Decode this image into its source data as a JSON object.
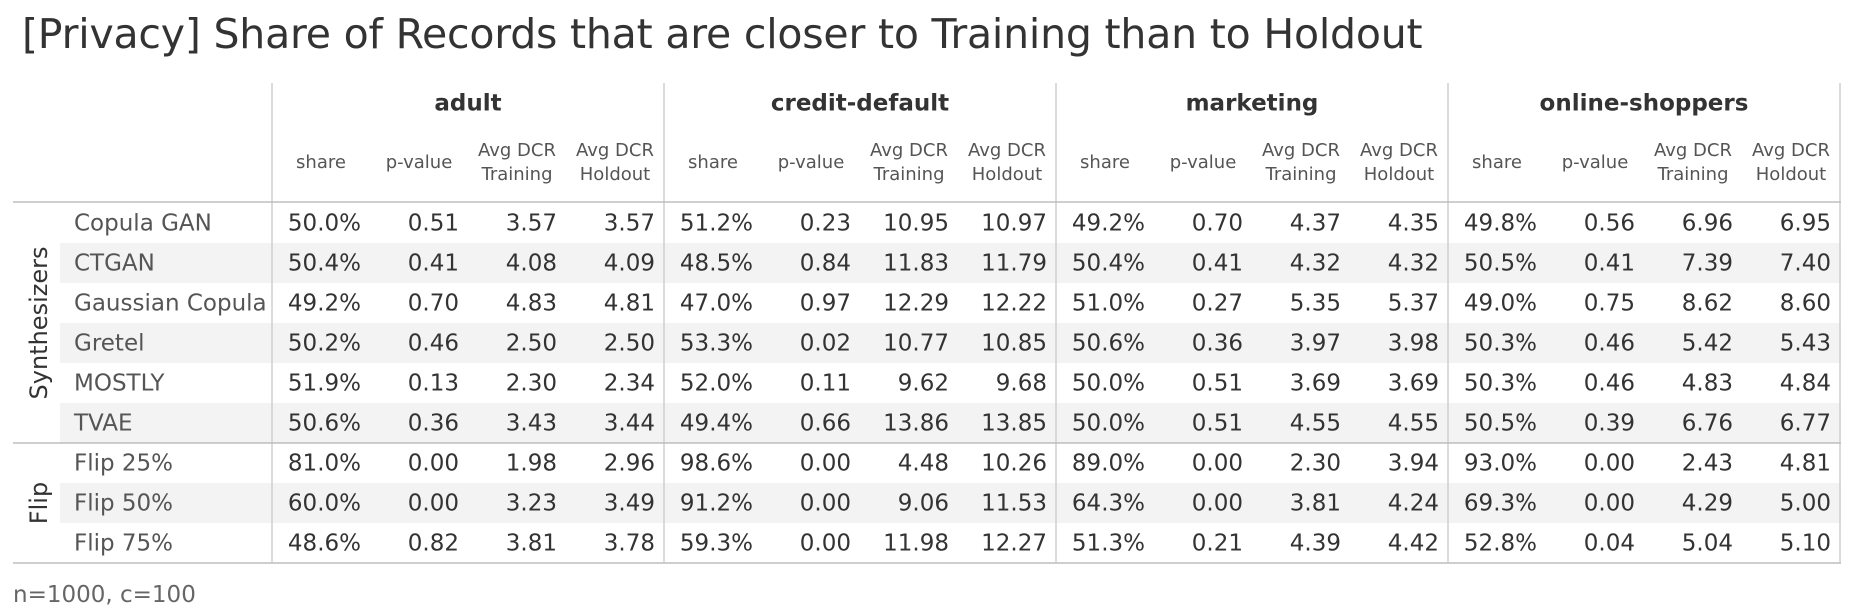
{
  "title": "[Privacy] Share of Records that are closer to Training than to Holdout",
  "footnote": "n=1000, c=100",
  "colors": {
    "row_stripe": "#f3f3f3",
    "grid_line": "#cfcfcf",
    "section_divider": "#bdbdbd",
    "header_text": "#333333",
    "subheader_text": "#555555",
    "cell_text": "#333333",
    "row_label_text": "#555555"
  },
  "chart_data": {
    "type": "table",
    "datasets": [
      "adult",
      "credit-default",
      "marketing",
      "online-shoppers"
    ],
    "metrics": [
      {
        "lines": [
          "share"
        ]
      },
      {
        "lines": [
          "p-value"
        ]
      },
      {
        "lines": [
          "Avg DCR",
          "Training"
        ]
      },
      {
        "lines": [
          "Avg DCR",
          "Holdout"
        ]
      }
    ],
    "groups": [
      {
        "name": "Synthesizers",
        "rows": [
          {
            "label": "Copula GAN",
            "values": [
              "50.0%",
              "0.51",
              "3.57",
              "3.57",
              "51.2%",
              "0.23",
              "10.95",
              "10.97",
              "49.2%",
              "0.70",
              "4.37",
              "4.35",
              "49.8%",
              "0.56",
              "6.96",
              "6.95"
            ]
          },
          {
            "label": "CTGAN",
            "values": [
              "50.4%",
              "0.41",
              "4.08",
              "4.09",
              "48.5%",
              "0.84",
              "11.83",
              "11.79",
              "50.4%",
              "0.41",
              "4.32",
              "4.32",
              "50.5%",
              "0.41",
              "7.39",
              "7.40"
            ]
          },
          {
            "label": "Gaussian Copula",
            "values": [
              "49.2%",
              "0.70",
              "4.83",
              "4.81",
              "47.0%",
              "0.97",
              "12.29",
              "12.22",
              "51.0%",
              "0.27",
              "5.35",
              "5.37",
              "49.0%",
              "0.75",
              "8.62",
              "8.60"
            ]
          },
          {
            "label": "Gretel",
            "values": [
              "50.2%",
              "0.46",
              "2.50",
              "2.50",
              "53.3%",
              "0.02",
              "10.77",
              "10.85",
              "50.6%",
              "0.36",
              "3.97",
              "3.98",
              "50.3%",
              "0.46",
              "5.42",
              "5.43"
            ]
          },
          {
            "label": "MOSTLY",
            "values": [
              "51.9%",
              "0.13",
              "2.30",
              "2.34",
              "52.0%",
              "0.11",
              "9.62",
              "9.68",
              "50.0%",
              "0.51",
              "3.69",
              "3.69",
              "50.3%",
              "0.46",
              "4.83",
              "4.84"
            ]
          },
          {
            "label": "TVAE",
            "values": [
              "50.6%",
              "0.36",
              "3.43",
              "3.44",
              "49.4%",
              "0.66",
              "13.86",
              "13.85",
              "50.0%",
              "0.51",
              "4.55",
              "4.55",
              "50.5%",
              "0.39",
              "6.76",
              "6.77"
            ]
          }
        ]
      },
      {
        "name": "Flip",
        "rows": [
          {
            "label": "Flip 25%",
            "values": [
              "81.0%",
              "0.00",
              "1.98",
              "2.96",
              "98.6%",
              "0.00",
              "4.48",
              "10.26",
              "89.0%",
              "0.00",
              "2.30",
              "3.94",
              "93.0%",
              "0.00",
              "2.43",
              "4.81"
            ]
          },
          {
            "label": "Flip 50%",
            "values": [
              "60.0%",
              "0.00",
              "3.23",
              "3.49",
              "91.2%",
              "0.00",
              "9.06",
              "11.53",
              "64.3%",
              "0.00",
              "3.81",
              "4.24",
              "69.3%",
              "0.00",
              "4.29",
              "5.00"
            ]
          },
          {
            "label": "Flip 75%",
            "values": [
              "48.6%",
              "0.82",
              "3.81",
              "3.78",
              "59.3%",
              "0.00",
              "11.98",
              "12.27",
              "51.3%",
              "0.21",
              "4.39",
              "4.42",
              "52.8%",
              "0.04",
              "5.04",
              "5.10"
            ]
          }
        ]
      }
    ]
  }
}
